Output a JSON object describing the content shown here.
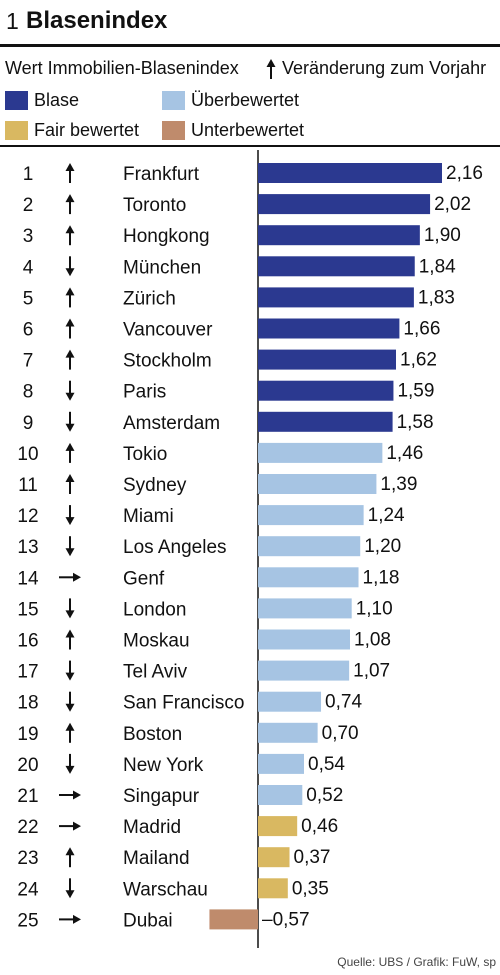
{
  "header": {
    "number": "1",
    "title": "Blasenindex"
  },
  "subtitle": {
    "left": "Wert Immobilien-Blasenindex",
    "right": "Veränderung zum Vorjahr"
  },
  "legend": [
    {
      "label": "Blase",
      "color": "#2b3990"
    },
    {
      "label": "Überbewertet",
      "color": "#a6c4e3"
    },
    {
      "label": "Fair bewertet",
      "color": "#d9b861"
    },
    {
      "label": "Unterbewertet",
      "color": "#bf8b6c"
    }
  ],
  "source": "Quelle: UBS / Grafik: FuW, sp",
  "chart_data": {
    "type": "bar",
    "orientation": "horizontal",
    "categories": [
      "Frankfurt",
      "Toronto",
      "Hongkong",
      "München",
      "Zürich",
      "Vancouver",
      "Stockholm",
      "Paris",
      "Amsterdam",
      "Tokio",
      "Sydney",
      "Miami",
      "Los Angeles",
      "Genf",
      "London",
      "Moskau",
      "Tel Aviv",
      "San Francisco",
      "Boston",
      "New York",
      "Singapur",
      "Madrid",
      "Mailand",
      "Warschau",
      "Dubai"
    ],
    "ranks": [
      "1",
      "2",
      "3",
      "4",
      "5",
      "6",
      "7",
      "8",
      "9",
      "10",
      "11",
      "12",
      "13",
      "14",
      "15",
      "16",
      "17",
      "18",
      "19",
      "20",
      "21",
      "22",
      "23",
      "24",
      "25"
    ],
    "values": [
      2.16,
      2.02,
      1.9,
      1.84,
      1.83,
      1.66,
      1.62,
      1.59,
      1.58,
      1.46,
      1.39,
      1.24,
      1.2,
      1.18,
      1.1,
      1.08,
      1.07,
      0.74,
      0.7,
      0.54,
      0.52,
      0.46,
      0.37,
      0.35,
      -0.57
    ],
    "value_labels": [
      "2,16",
      "2,02",
      "1,90",
      "1,84",
      "1,83",
      "1,66",
      "1,62",
      "1,59",
      "1,58",
      "1,46",
      "1,39",
      "1,24",
      "1,20",
      "1,18",
      "1,10",
      "1,08",
      "1,07",
      "0,74",
      "0,70",
      "0,54",
      "0,52",
      "0,46",
      "0,37",
      "0,35",
      "–0,57"
    ],
    "trend": [
      "up",
      "up",
      "up",
      "down",
      "up",
      "up",
      "up",
      "down",
      "down",
      "up",
      "up",
      "down",
      "down",
      "flat",
      "down",
      "up",
      "down",
      "down",
      "up",
      "down",
      "flat",
      "flat",
      "up",
      "down",
      "flat"
    ],
    "category_class": [
      "Blase",
      "Blase",
      "Blase",
      "Blase",
      "Blase",
      "Blase",
      "Blase",
      "Blase",
      "Blase",
      "Überbewertet",
      "Überbewertet",
      "Überbewertet",
      "Überbewertet",
      "Überbewertet",
      "Überbewertet",
      "Überbewertet",
      "Überbewertet",
      "Überbewertet",
      "Überbewertet",
      "Überbewertet",
      "Überbewertet",
      "Fair bewertet",
      "Fair bewertet",
      "Fair bewertet",
      "Unterbewertet"
    ],
    "xlim": [
      -1,
      2.4
    ],
    "grid": false,
    "legend_position": "top"
  }
}
